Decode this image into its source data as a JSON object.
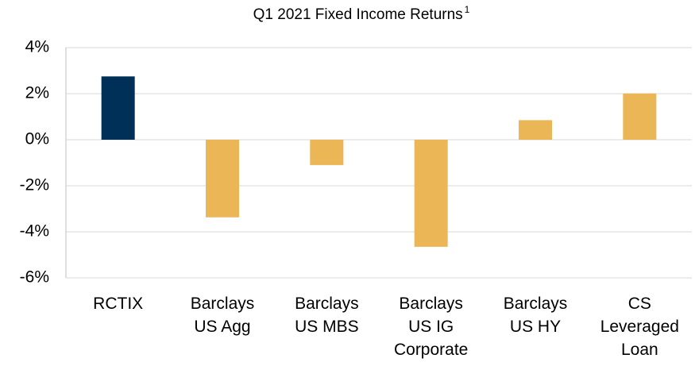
{
  "chart_data": {
    "type": "bar",
    "title": "Q1 2021 Fixed Income Returns",
    "title_note": "1",
    "categories": [
      [
        "RCTIX"
      ],
      [
        "Barclays",
        "US Agg"
      ],
      [
        "Barclays",
        "US MBS"
      ],
      [
        "Barclays",
        "US IG",
        "Corporate"
      ],
      [
        "Barclays",
        "US HY"
      ],
      [
        "CS",
        "Leveraged",
        "Loan"
      ]
    ],
    "values": [
      2.75,
      -3.37,
      -1.1,
      -4.65,
      0.85,
      2.01
    ],
    "colors": [
      "#003057",
      "#ebb655",
      "#ebb655",
      "#ebb655",
      "#ebb655",
      "#ebb655"
    ],
    "ylim": [
      -6,
      4
    ],
    "yticks": [
      {
        "value": -6,
        "label": "-6%"
      },
      {
        "value": -4,
        "label": "-4%"
      },
      {
        "value": -2,
        "label": "-2%"
      },
      {
        "value": 0,
        "label": "0%"
      },
      {
        "value": 2,
        "label": "2%"
      },
      {
        "value": 4,
        "label": "4%"
      }
    ],
    "grid": true
  }
}
